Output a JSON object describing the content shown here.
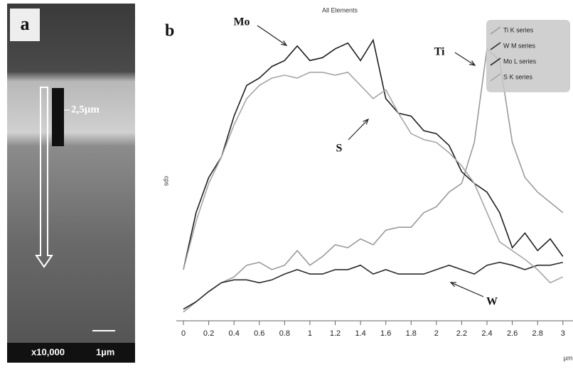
{
  "panel_a": {
    "label": "a",
    "thickness": "2,5µm",
    "magnification": "x10,000",
    "scale_bar": "1µm"
  },
  "chart_data": {
    "type": "line",
    "panel_label": "b",
    "title": "All Elements",
    "ylabel": "cps",
    "xlabel": "µm",
    "x": [
      0,
      0.1,
      0.2,
      0.3,
      0.4,
      0.5,
      0.6,
      0.7,
      0.8,
      0.9,
      1,
      1.1,
      1.2,
      1.3,
      1.4,
      1.5,
      1.6,
      1.7,
      1.8,
      1.9,
      2,
      2.1,
      2.2,
      2.3,
      2.4,
      2.5,
      2.6,
      2.7,
      2.8,
      2.9,
      3
    ],
    "xlim": [
      0,
      3.08
    ],
    "xticks": [
      0,
      0.2,
      0.4,
      0.6,
      0.8,
      1,
      1.2,
      1.4,
      1.6,
      1.8,
      2,
      2.2,
      2.4,
      2.6,
      2.8,
      3
    ],
    "ylim": [
      0,
      100
    ],
    "legend": "top-right",
    "series": [
      {
        "name": "Ti K series",
        "color": "#9a9a9a",
        "values": [
          3,
          6.5,
          10,
          13,
          15,
          19,
          20,
          17.5,
          19,
          24,
          19,
          22,
          26,
          25,
          28,
          26,
          31,
          32,
          32,
          37,
          39,
          44,
          47,
          61,
          93,
          89,
          61,
          49,
          44,
          40.5,
          37
        ]
      },
      {
        "name": "W M series",
        "color": "#2a2a2a",
        "values": [
          4,
          6.5,
          10,
          13,
          14,
          14,
          13,
          14,
          16,
          17.5,
          16,
          16,
          17.5,
          17.5,
          19,
          16,
          17.5,
          16,
          16,
          16,
          17.5,
          19,
          17.5,
          16,
          19,
          20,
          19,
          17.5,
          19,
          19,
          20
        ]
      },
      {
        "name": "Mo L series",
        "color": "#1e1e1e",
        "values": [
          17.5,
          37,
          49,
          56,
          70,
          80.5,
          83,
          87,
          89,
          94,
          89,
          90,
          93,
          95,
          89,
          96,
          76,
          71,
          70,
          65,
          64,
          60,
          51,
          47,
          44,
          37,
          25,
          30,
          24,
          28,
          22
        ]
      },
      {
        "name": "S K series",
        "color": "#a5a5a5",
        "values": [
          17.5,
          34,
          47,
          56,
          67,
          76,
          80.5,
          83,
          84,
          83,
          85,
          85,
          84,
          85,
          80.5,
          76,
          79,
          71,
          64,
          62,
          61,
          57.5,
          53,
          47,
          37,
          27,
          24,
          21,
          17.5,
          13,
          15
        ]
      }
    ],
    "annotations": [
      "Mo",
      "S",
      "Ti",
      "W"
    ]
  }
}
